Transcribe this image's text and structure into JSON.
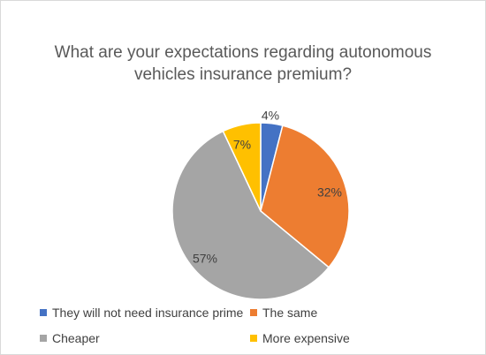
{
  "chart_data": {
    "type": "pie",
    "title_lines": [
      "What are your expectations regarding autonomous",
      "vehicles insurance premium?"
    ],
    "slices": [
      {
        "name": "They will not need insurance prime",
        "value": 4,
        "label": "4%",
        "color": "#4472c4"
      },
      {
        "name": "The same",
        "value": 32,
        "label": "32%",
        "color": "#ed7d31"
      },
      {
        "name": "Cheaper",
        "value": 57,
        "label": "57%",
        "color": "#a5a5a5"
      },
      {
        "name": "More expensive",
        "value": 7,
        "label": "7%",
        "color": "#ffc000"
      }
    ],
    "legend_position": "bottom"
  }
}
